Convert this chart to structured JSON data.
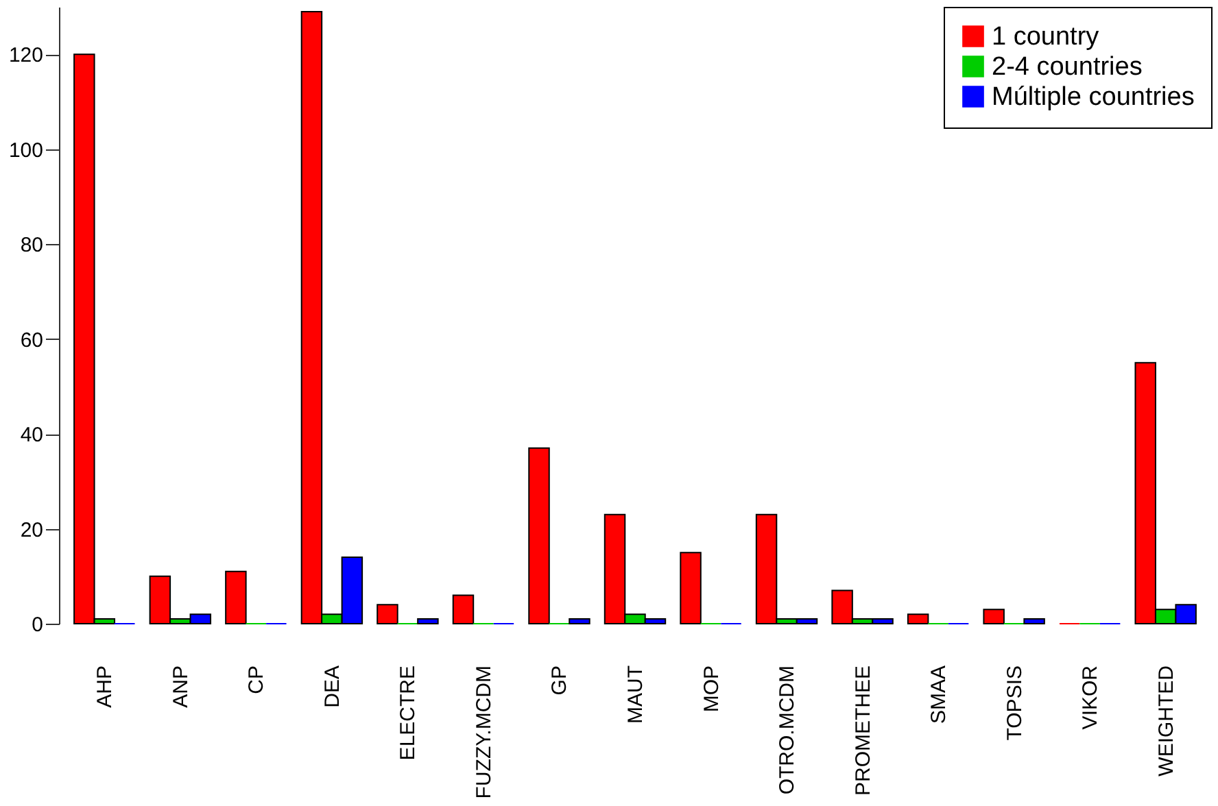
{
  "chart_data": {
    "type": "bar",
    "categories": [
      "AHP",
      "ANP",
      "CP",
      "DEA",
      "ELECTRE",
      "FUZZY.MCDM",
      "GP",
      "MAUT",
      "MOP",
      "OTRO.MCDM",
      "PROMETHEE",
      "SMAA",
      "TOPSIS",
      "VIKOR",
      "WEIGHTED"
    ],
    "series": [
      {
        "name": "1 country",
        "color": "#ff0000",
        "values": [
          120,
          10,
          11,
          129,
          4,
          6,
          37,
          23,
          15,
          23,
          7,
          2,
          3,
          0,
          55
        ]
      },
      {
        "name": "2-4 countries",
        "color": "#00cd00",
        "values": [
          1,
          1,
          0,
          2,
          0,
          0,
          0,
          2,
          0,
          1,
          1,
          0,
          0,
          0,
          3
        ]
      },
      {
        "name": "Múltiple countries",
        "color": "#0000ff",
        "values": [
          0,
          2,
          0,
          14,
          1,
          0,
          1,
          1,
          0,
          1,
          1,
          0,
          1,
          0,
          4
        ]
      }
    ],
    "ylim": [
      0,
      130
    ],
    "yticks": [
      0,
      20,
      40,
      60,
      80,
      100,
      120
    ],
    "grid": false,
    "legend": "top right"
  }
}
